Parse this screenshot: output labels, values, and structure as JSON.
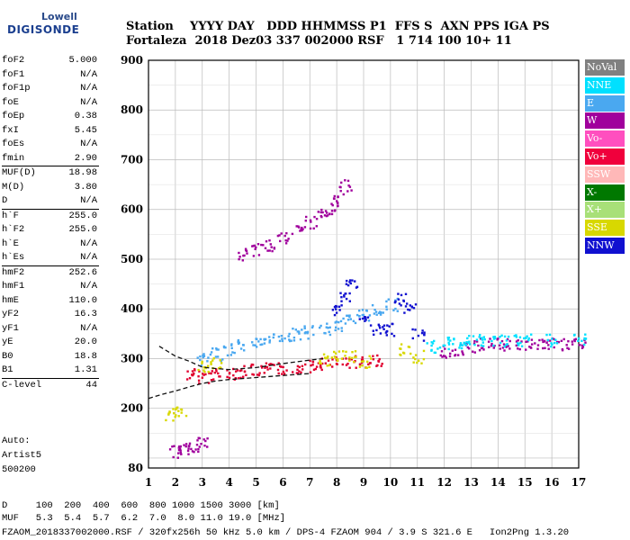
{
  "logo": {
    "line1": "Lowell",
    "line2": "DIGISONDE"
  },
  "header": {
    "row1": "Station    YYYY DAY   DDD HHMMSS P1  FFS S  AXN PPS IGA PS",
    "row2": "Fortaleza  2018 Dez03 337 002000 RSF   1 714 100 10+ 11"
  },
  "params_groups": [
    [
      [
        "foF2",
        "5.000"
      ],
      [
        "foF1",
        "N/A"
      ],
      [
        "foF1p",
        "N/A"
      ],
      [
        "foE",
        "N/A"
      ],
      [
        "foEp",
        "0.38"
      ],
      [
        "fxI",
        "5.45"
      ],
      [
        "foEs",
        "N/A"
      ],
      [
        "fmin",
        "2.90"
      ]
    ],
    [
      [
        "MUF(D)",
        "18.98"
      ],
      [
        "M(D)",
        "3.80"
      ],
      [
        "D",
        "N/A"
      ]
    ],
    [
      [
        "h`F",
        "255.0"
      ],
      [
        "h`F2",
        "255.0"
      ],
      [
        "h`E",
        "N/A"
      ],
      [
        "h`Es",
        "N/A"
      ]
    ],
    [
      [
        "hmF2",
        "252.6"
      ],
      [
        "hmF1",
        "N/A"
      ],
      [
        "hmE",
        "110.0"
      ],
      [
        "yF2",
        "16.3"
      ],
      [
        "yF1",
        "N/A"
      ],
      [
        "yE",
        "20.0"
      ],
      [
        "B0",
        "18.8"
      ],
      [
        "B1",
        "1.31"
      ]
    ],
    [
      [
        "C-level",
        "44"
      ]
    ]
  ],
  "auto": {
    "line1": "Auto:",
    "line2": "Artist5",
    "line3": "500200"
  },
  "legend": [
    {
      "label": "NoVal",
      "color": "#808080",
      "text": "#ffffff"
    },
    {
      "label": "NNE",
      "color": "#00e0ff",
      "text": "#ffffff"
    },
    {
      "label": "E",
      "color": "#4aa8f0",
      "text": "#ffffff"
    },
    {
      "label": "W",
      "color": "#a0009c",
      "text": "#ffffff"
    },
    {
      "label": "Vo-",
      "color": "#ff4fbf",
      "text": "#ffffff"
    },
    {
      "label": "Vo+",
      "color": "#f0003c",
      "text": "#ffffff"
    },
    {
      "label": "SSW",
      "color": "#ffb8b8",
      "text": "#ffffff"
    },
    {
      "label": "X-",
      "color": "#007800",
      "text": "#ffffff"
    },
    {
      "label": "X+",
      "color": "#a8e078",
      "text": "#ffffff"
    },
    {
      "label": "SSE",
      "color": "#d8d800",
      "text": "#ffffff"
    },
    {
      "label": "NNW",
      "color": "#1010d0",
      "text": "#ffffff"
    }
  ],
  "footer": {
    "d_row": "D     100  200  400  600  800 1000 1500 3000 [km]",
    "muf_row": "MUF   5.3  5.4  5.7  6.2  7.0  8.0 11.0 19.0 [MHz]",
    "file_row": "FZAOM_2018337002000.RSF / 320fx256h 50 kHz 5.0 km / DPS-4 FZAOM 904 / 3.9 S 321.6 E   Ion2Png 1.3.20"
  },
  "chart_data": {
    "type": "scatter",
    "xlim": [
      1,
      17
    ],
    "ylim": [
      80,
      900
    ],
    "xticks": [
      1,
      2,
      3,
      4,
      5,
      6,
      7,
      8,
      9,
      10,
      11,
      12,
      13,
      14,
      15,
      16,
      17
    ],
    "yticks": [
      80,
      200,
      300,
      400,
      500,
      600,
      700,
      800,
      900
    ],
    "grid": true,
    "legend_position": "right",
    "series": [
      {
        "color": "#e00030",
        "x": [
          2.6,
          3.0,
          3.5,
          4.0,
          4.5,
          5.0,
          5.5,
          6.0,
          6.5,
          7.0,
          7.5,
          8.0,
          8.5,
          9.0,
          9.5
        ],
        "y": [
          270,
          265,
          270,
          272,
          275,
          278,
          280,
          282,
          285,
          287,
          290,
          292,
          295,
          296,
          298
        ]
      },
      {
        "color": "#4aa8f0",
        "x": [
          3.0,
          3.5,
          4.0,
          4.5,
          5.0,
          5.5,
          6.0,
          6.5,
          7.0,
          7.5,
          8.0,
          8.5,
          9.0,
          9.5,
          10.0
        ],
        "y": [
          300,
          310,
          320,
          330,
          335,
          340,
          345,
          350,
          355,
          360,
          370,
          380,
          390,
          400,
          410
        ]
      },
      {
        "color": "#a0009c",
        "x": [
          4.5,
          5.0,
          5.5,
          6.0,
          6.5,
          7.0,
          7.5,
          7.8,
          8.0,
          8.3
        ],
        "y": [
          510,
          520,
          530,
          545,
          560,
          575,
          590,
          605,
          620,
          650
        ]
      },
      {
        "color": "#a0009c",
        "x": [
          12,
          12.5,
          13,
          13.5,
          14,
          14.5,
          15,
          15.5,
          16,
          16.5,
          17
        ],
        "y": [
          315,
          320,
          325,
          330,
          330,
          330,
          330,
          330,
          330,
          330,
          330
        ]
      },
      {
        "color": "#00e0ff",
        "x": [
          11.5,
          12,
          12.5,
          13,
          13.5,
          14,
          14.5,
          15,
          16,
          17
        ],
        "y": [
          325,
          332,
          335,
          338,
          338,
          338,
          338,
          338,
          338,
          338
        ]
      },
      {
        "color": "#1010d0",
        "x": [
          8.0,
          8.3,
          8.5,
          9.0,
          9.5,
          10.0,
          10.3,
          10.7,
          11.0
        ],
        "y": [
          400,
          430,
          450,
          380,
          360,
          360,
          420,
          400,
          350
        ]
      },
      {
        "color": "#d8d800",
        "x": [
          3.0,
          3.5,
          7.5,
          8.0,
          8.5,
          9.0,
          10.5,
          11.0
        ],
        "y": [
          285,
          290,
          300,
          305,
          305,
          295,
          320,
          305
        ]
      },
      {
        "color": "#a0009c",
        "x": [
          2.0,
          2.3,
          2.6,
          3.0
        ],
        "y": [
          115,
          120,
          125,
          130
        ]
      },
      {
        "color": "#d8d800",
        "x": [
          1.8,
          2.2
        ],
        "y": [
          190,
          192
        ]
      }
    ],
    "curve_upper": {
      "x": [
        1.4,
        2.0,
        2.5,
        3.0,
        3.5,
        4.0,
        5.0,
        6.0,
        7.0,
        7.5
      ],
      "y": [
        325,
        305,
        295,
        283,
        280,
        278,
        282,
        290,
        297,
        300
      ]
    },
    "curve_lower": {
      "x": [
        1.0,
        1.5,
        2.0,
        2.5,
        3.0,
        3.5,
        4.0,
        5.0,
        6.0,
        7.0
      ],
      "y": [
        220,
        228,
        235,
        243,
        250,
        255,
        258,
        262,
        266,
        270
      ]
    }
  }
}
